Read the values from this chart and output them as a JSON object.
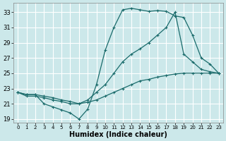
{
  "xlabel": "Humidex (Indice chaleur)",
  "bg_color": "#cce8ea",
  "grid_color": "#b8d8da",
  "line_color": "#1a6b6b",
  "xlim": [
    -0.5,
    23.5
  ],
  "ylim": [
    18.5,
    34.2
  ],
  "xticks": [
    0,
    1,
    2,
    3,
    4,
    5,
    6,
    7,
    8,
    9,
    10,
    11,
    12,
    13,
    14,
    15,
    16,
    17,
    18,
    19,
    20,
    21,
    22,
    23
  ],
  "yticks": [
    19,
    21,
    23,
    25,
    27,
    29,
    31,
    33
  ],
  "line1_x": [
    0,
    1,
    2,
    3,
    4,
    5,
    6,
    7,
    8,
    9,
    10,
    11,
    12,
    13,
    14,
    15,
    16,
    17,
    18,
    19,
    20,
    21,
    22,
    23
  ],
  "line1_y": [
    22.5,
    22.2,
    22.2,
    21.0,
    20.6,
    20.2,
    19.8,
    19.0,
    20.3,
    23.5,
    28.0,
    31.0,
    33.3,
    33.5,
    33.3,
    33.1,
    33.2,
    33.1,
    32.5,
    32.3,
    30.0,
    27.0,
    26.2,
    25.0
  ],
  "line2_x": [
    0,
    1,
    2,
    3,
    4,
    5,
    6,
    7,
    8,
    9,
    10,
    11,
    12,
    13,
    14,
    15,
    16,
    17,
    18,
    19,
    20,
    21,
    22,
    23
  ],
  "line2_y": [
    22.5,
    22.2,
    22.2,
    22.0,
    21.8,
    21.5,
    21.3,
    21.0,
    21.5,
    22.5,
    23.5,
    25.0,
    26.5,
    27.5,
    28.2,
    29.0,
    30.0,
    31.0,
    33.0,
    27.5,
    26.5,
    25.5,
    25.2,
    25.0
  ],
  "line3_x": [
    0,
    1,
    2,
    3,
    4,
    5,
    6,
    7,
    8,
    9,
    10,
    11,
    12,
    13,
    14,
    15,
    16,
    17,
    18,
    19,
    20,
    21,
    22,
    23
  ],
  "line3_y": [
    22.5,
    22.0,
    22.0,
    21.8,
    21.5,
    21.3,
    21.0,
    21.0,
    21.2,
    21.5,
    22.0,
    22.5,
    23.0,
    23.5,
    24.0,
    24.2,
    24.5,
    24.7,
    24.9,
    25.0,
    25.0,
    25.0,
    25.0,
    25.0
  ]
}
